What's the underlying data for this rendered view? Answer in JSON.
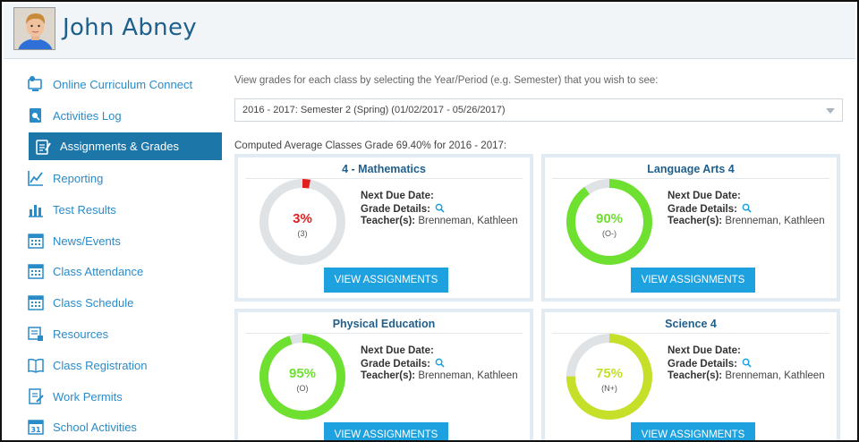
{
  "student": {
    "name": "John Abney"
  },
  "sidebar": {
    "items": [
      {
        "label": "Online Curriculum Connect",
        "icon": "monitor-icon"
      },
      {
        "label": "Activities Log",
        "icon": "log-icon"
      },
      {
        "label": "Assignments & Grades",
        "icon": "assignment-icon",
        "active": true
      },
      {
        "label": "Reporting",
        "icon": "line-chart-icon"
      },
      {
        "label": "Test Results",
        "icon": "bar-chart-icon"
      },
      {
        "label": "News/Events",
        "icon": "calendar-icon"
      },
      {
        "label": "Class Attendance",
        "icon": "calendar-icon"
      },
      {
        "label": "Class Schedule",
        "icon": "calendar-icon"
      },
      {
        "label": "Resources",
        "icon": "resources-icon"
      },
      {
        "label": "Class Registration",
        "icon": "book-icon"
      },
      {
        "label": "Work Permits",
        "icon": "permit-icon"
      },
      {
        "label": "School Activities",
        "icon": "calendar-31-icon"
      }
    ]
  },
  "main": {
    "instructions": "View grades for each class by selecting the Year/Period (e.g. Semester) that you wish to see:",
    "period_selected": "2016 - 2017: Semester 2 (Spring) (01/02/2017 - 05/26/2017)",
    "average_text": "Computed Average Classes Grade 69.40% for 2016 - 2017:",
    "labels": {
      "next_due": "Next Due Date:",
      "grade_details": "Grade Details:",
      "teachers": "Teacher(s):",
      "view_button": "VIEW ASSIGNMENTS"
    },
    "classes": [
      {
        "title": "4 - Mathematics",
        "percent_label": "3%",
        "percent": 3,
        "grade": "(3)",
        "color": "#e02020",
        "teacher": "Brenneman, Kathleen"
      },
      {
        "title": "Language Arts 4",
        "percent_label": "90%",
        "percent": 90,
        "grade": "(O-)",
        "color": "#6ee030",
        "teacher": "Brenneman, Kathleen"
      },
      {
        "title": "Physical Education",
        "percent_label": "95%",
        "percent": 95,
        "grade": "(O)",
        "color": "#6ee030",
        "teacher": "Brenneman, Kathleen"
      },
      {
        "title": "Science 4",
        "percent_label": "75%",
        "percent": 75,
        "grade": "(N+)",
        "color": "#c6e02a",
        "teacher": "Brenneman, Kathleen"
      }
    ]
  },
  "colors": {
    "accent": "#1c76a8",
    "link": "#2a8bc9",
    "button": "#1ea1df",
    "ring_track": "#e0e3e6"
  }
}
